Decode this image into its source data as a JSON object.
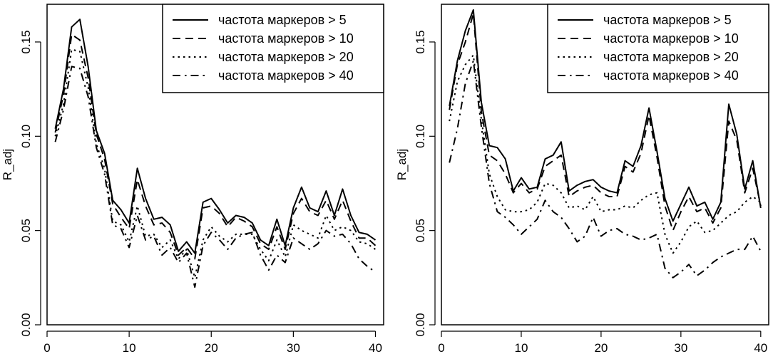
{
  "chart_data": [
    {
      "type": "line",
      "ylabel": "R_adj",
      "xlabel": "",
      "xlim": [
        0,
        41
      ],
      "ylim": [
        0,
        0.17
      ],
      "xticks": [
        "0",
        "10",
        "20",
        "30",
        "40"
      ],
      "yticks": [
        "0.00",
        "0.05",
        "0.10",
        "0.15"
      ],
      "legend_position": "top-right",
      "grid": false,
      "x": [
        1,
        2,
        3,
        4,
        5,
        6,
        7,
        8,
        9,
        10,
        11,
        12,
        13,
        14,
        15,
        16,
        17,
        18,
        19,
        20,
        21,
        22,
        23,
        24,
        25,
        26,
        27,
        28,
        29,
        30,
        31,
        32,
        33,
        34,
        35,
        36,
        37,
        38,
        39,
        40
      ],
      "series": [
        {
          "name": "частота маркеров > 5",
          "dash": "solid",
          "values": [
            0.104,
            0.125,
            0.158,
            0.162,
            0.137,
            0.103,
            0.091,
            0.066,
            0.061,
            0.054,
            0.083,
            0.067,
            0.056,
            0.057,
            0.053,
            0.039,
            0.044,
            0.038,
            0.065,
            0.067,
            0.061,
            0.054,
            0.058,
            0.057,
            0.054,
            0.045,
            0.042,
            0.056,
            0.042,
            0.062,
            0.073,
            0.062,
            0.06,
            0.071,
            0.058,
            0.072,
            0.058,
            0.049,
            0.048,
            0.045
          ]
        },
        {
          "name": "частота маркеров > 10",
          "dash": "dashed",
          "values": [
            0.102,
            0.122,
            0.154,
            0.151,
            0.131,
            0.101,
            0.088,
            0.064,
            0.057,
            0.051,
            0.077,
            0.063,
            0.053,
            0.054,
            0.049,
            0.037,
            0.041,
            0.035,
            0.062,
            0.063,
            0.059,
            0.052,
            0.057,
            0.055,
            0.052,
            0.043,
            0.04,
            0.052,
            0.04,
            0.059,
            0.067,
            0.06,
            0.058,
            0.066,
            0.056,
            0.066,
            0.055,
            0.046,
            0.046,
            0.042
          ]
        },
        {
          "name": "частота маркеров > 20",
          "dash": "dotted",
          "values": [
            0.1,
            0.117,
            0.146,
            0.145,
            0.126,
            0.096,
            0.083,
            0.055,
            0.053,
            0.044,
            0.063,
            0.047,
            0.048,
            0.041,
            0.045,
            0.035,
            0.04,
            0.025,
            0.045,
            0.052,
            0.047,
            0.044,
            0.048,
            0.048,
            0.048,
            0.04,
            0.034,
            0.045,
            0.036,
            0.053,
            0.05,
            0.048,
            0.046,
            0.058,
            0.05,
            0.052,
            0.05,
            0.044,
            0.043,
            0.04
          ]
        },
        {
          "name": "частота маркеров > 40",
          "dash": "dashdot",
          "values": [
            0.097,
            0.114,
            0.137,
            0.136,
            0.121,
            0.094,
            0.08,
            0.053,
            0.051,
            0.041,
            0.058,
            0.045,
            0.047,
            0.037,
            0.041,
            0.033,
            0.038,
            0.02,
            0.042,
            0.049,
            0.045,
            0.04,
            0.046,
            0.048,
            0.049,
            0.037,
            0.029,
            0.037,
            0.033,
            0.046,
            0.043,
            0.04,
            0.043,
            0.05,
            0.047,
            0.048,
            0.043,
            0.035,
            0.031,
            0.028
          ]
        }
      ]
    },
    {
      "type": "line",
      "ylabel": "R_adj",
      "xlabel": "",
      "xlim": [
        0,
        41
      ],
      "ylim": [
        0,
        0.17
      ],
      "xticks": [
        "0",
        "10",
        "20",
        "30",
        "40"
      ],
      "yticks": [
        "0.00",
        "0.05",
        "0.10",
        "0.15"
      ],
      "legend_position": "top-right",
      "grid": false,
      "x": [
        1,
        2,
        3,
        4,
        5,
        6,
        7,
        8,
        9,
        10,
        11,
        12,
        13,
        14,
        15,
        16,
        17,
        18,
        19,
        20,
        21,
        22,
        23,
        24,
        25,
        26,
        27,
        28,
        29,
        30,
        31,
        32,
        33,
        34,
        35,
        36,
        37,
        38,
        39,
        40
      ],
      "series": [
        {
          "name": "частота маркеров > 5",
          "dash": "solid",
          "values": [
            0.116,
            0.14,
            0.156,
            0.167,
            0.118,
            0.095,
            0.094,
            0.088,
            0.071,
            0.078,
            0.072,
            0.073,
            0.088,
            0.09,
            0.097,
            0.071,
            0.074,
            0.076,
            0.077,
            0.073,
            0.071,
            0.07,
            0.087,
            0.084,
            0.095,
            0.115,
            0.092,
            0.067,
            0.055,
            0.064,
            0.073,
            0.063,
            0.065,
            0.056,
            0.065,
            0.117,
            0.101,
            0.072,
            0.087,
            0.062
          ]
        },
        {
          "name": "частота маркеров > 10",
          "dash": "dashed",
          "values": [
            0.114,
            0.138,
            0.15,
            0.165,
            0.113,
            0.09,
            0.087,
            0.08,
            0.07,
            0.075,
            0.07,
            0.072,
            0.084,
            0.087,
            0.09,
            0.068,
            0.071,
            0.073,
            0.074,
            0.07,
            0.068,
            0.068,
            0.084,
            0.081,
            0.091,
            0.111,
            0.089,
            0.063,
            0.05,
            0.06,
            0.068,
            0.06,
            0.062,
            0.054,
            0.062,
            0.108,
            0.098,
            0.07,
            0.083,
            0.063
          ]
        },
        {
          "name": "частота маркеров > 20",
          "dash": "dotted",
          "values": [
            0.108,
            0.129,
            0.138,
            0.143,
            0.109,
            0.08,
            0.068,
            0.061,
            0.06,
            0.06,
            0.061,
            0.065,
            0.075,
            0.074,
            0.07,
            0.062,
            0.063,
            0.061,
            0.068,
            0.06,
            0.061,
            0.061,
            0.063,
            0.062,
            0.066,
            0.069,
            0.07,
            0.048,
            0.038,
            0.044,
            0.052,
            0.055,
            0.049,
            0.05,
            0.054,
            0.058,
            0.06,
            0.065,
            0.068,
            0.065
          ]
        },
        {
          "name": "частота маркеров > 40",
          "dash": "dashdot",
          "values": [
            0.086,
            0.104,
            0.128,
            0.14,
            0.105,
            0.075,
            0.06,
            0.057,
            0.053,
            0.048,
            0.052,
            0.056,
            0.066,
            0.06,
            0.057,
            0.051,
            0.044,
            0.047,
            0.057,
            0.047,
            0.05,
            0.051,
            0.048,
            0.047,
            0.045,
            0.046,
            0.048,
            0.03,
            0.025,
            0.028,
            0.032,
            0.026,
            0.029,
            0.033,
            0.036,
            0.038,
            0.04,
            0.04,
            0.047,
            0.039
          ]
        }
      ]
    }
  ]
}
